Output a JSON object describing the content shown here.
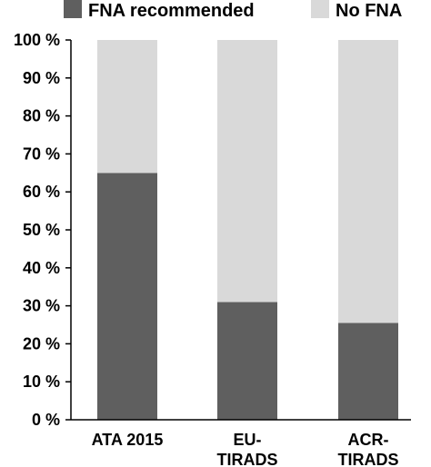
{
  "chart_data": {
    "type": "bar",
    "stacked": true,
    "categories": [
      [
        "ATA 2015"
      ],
      [
        "EU-",
        "TIRADS"
      ],
      [
        "ACR-",
        "TIRADS"
      ]
    ],
    "series": [
      {
        "name": "FNA recommended",
        "color": "#5f5f5f",
        "values": [
          65,
          31,
          25.5
        ]
      },
      {
        "name": "No FNA",
        "color": "#d9d9d9",
        "values": [
          35,
          69,
          74.5
        ]
      }
    ],
    "yticks": [
      "0 %",
      "10 %",
      "20 %",
      "30 %",
      "40 %",
      "50 %",
      "60 %",
      "70 %",
      "80 %",
      "90 %",
      "100 %"
    ],
    "ylim": [
      0,
      100
    ],
    "legend_position": "top",
    "grid": false
  }
}
